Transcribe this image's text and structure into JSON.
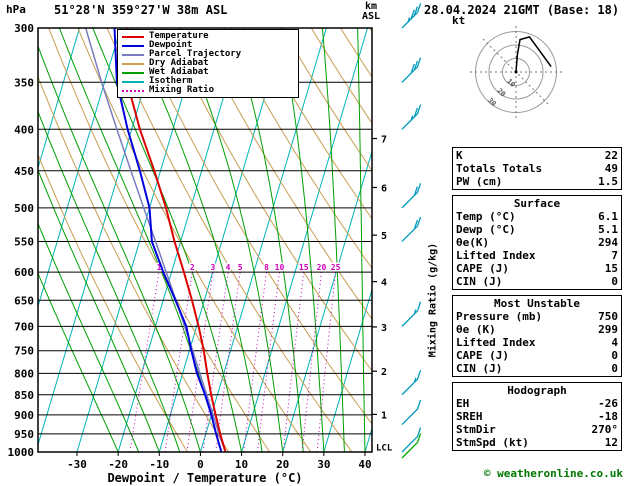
{
  "header": {
    "station": "51°28'N 359°27'W 38m ASL",
    "datetime": "28.04.2024 21GMT (Base: 18)"
  },
  "axes": {
    "pressure_unit": "hPa",
    "pressure_ticks": [
      300,
      350,
      400,
      450,
      500,
      550,
      600,
      650,
      700,
      750,
      800,
      850,
      900,
      950,
      1000
    ],
    "x_label": "Dewpoint / Temperature (°C)",
    "x_ticks": [
      -30,
      -20,
      -10,
      0,
      10,
      20,
      30,
      40
    ],
    "km_unit": "km",
    "km_sub": "ASL",
    "right_axis_label": "Mixing Ratio (g/kg)",
    "lcl_label": "LCL"
  },
  "legend": {
    "items": [
      {
        "label": "Temperature",
        "color": "#dd0000",
        "style": "solid"
      },
      {
        "label": "Dewpoint",
        "color": "#0000dd",
        "style": "solid"
      },
      {
        "label": "Parcel Trajectory",
        "color": "#7b7bc0",
        "style": "solid"
      },
      {
        "label": "Dry Adiabat",
        "color": "#c89e50",
        "style": "solid"
      },
      {
        "label": "Wet Adiabat",
        "color": "#00a000",
        "style": "solid"
      },
      {
        "label": "Isotherm",
        "color": "#00b4b4",
        "style": "solid"
      },
      {
        "label": "Mixing Ratio",
        "color": "#cc00bb",
        "style": "dotted"
      }
    ]
  },
  "colors": {
    "isotherm": "#00b4b4",
    "dry_adiabat": "#c89e50",
    "wet_adiabat": "#00a000",
    "mixing_ratio": "#cc00bb",
    "barb": "#0099bb",
    "grid": "#000000"
  },
  "chart_data": {
    "type": "skewt-log-p",
    "pressure_range_hpa": [
      300,
      1000
    ],
    "temp_axis_range_c": [
      -40,
      40
    ],
    "isotherm_step_c": 10,
    "series": {
      "temperature": {
        "color": "#dd0000",
        "points": [
          [
            1000,
            6.1
          ],
          [
            950,
            3.5
          ],
          [
            900,
            1.0
          ],
          [
            850,
            -1.5
          ],
          [
            800,
            -4.0
          ],
          [
            750,
            -6.5
          ],
          [
            700,
            -9.5
          ],
          [
            650,
            -13.0
          ],
          [
            600,
            -17.0
          ],
          [
            550,
            -21.5
          ],
          [
            500,
            -26.0
          ],
          [
            450,
            -31.5
          ],
          [
            400,
            -38.0
          ],
          [
            350,
            -44.5
          ],
          [
            300,
            -48.5
          ]
        ]
      },
      "dewpoint": {
        "color": "#0000dd",
        "points": [
          [
            1000,
            5.1
          ],
          [
            950,
            2.5
          ],
          [
            900,
            0.0
          ],
          [
            850,
            -3.0
          ],
          [
            800,
            -6.5
          ],
          [
            750,
            -9.5
          ],
          [
            700,
            -12.5
          ],
          [
            650,
            -17.0
          ],
          [
            600,
            -22.0
          ],
          [
            550,
            -27.0
          ],
          [
            500,
            -30.0
          ],
          [
            450,
            -35.0
          ],
          [
            400,
            -41.0
          ],
          [
            350,
            -47.0
          ],
          [
            300,
            -51.5
          ]
        ]
      },
      "parcel": {
        "color": "#7b7bc0",
        "points": [
          [
            1000,
            6.1
          ],
          [
            950,
            3.2
          ],
          [
            900,
            0.4
          ],
          [
            850,
            -2.6
          ],
          [
            800,
            -5.8
          ],
          [
            750,
            -9.2
          ],
          [
            700,
            -12.9
          ],
          [
            650,
            -16.9
          ],
          [
            600,
            -21.3
          ],
          [
            550,
            -26.1
          ],
          [
            500,
            -31.4
          ],
          [
            450,
            -37.2
          ],
          [
            400,
            -43.6
          ],
          [
            350,
            -50.7
          ],
          [
            300,
            -58.5
          ]
        ]
      }
    },
    "dry_adiabat_thetas_k": [
      270,
      280,
      290,
      300,
      310,
      320,
      330,
      340,
      350,
      360,
      370,
      380,
      390,
      400,
      410,
      420
    ],
    "wet_adiabat_surface_temps_c": [
      -20,
      -15,
      -10,
      -5,
      0,
      5,
      10,
      15,
      20,
      25,
      30,
      35,
      40
    ],
    "mixing_ratio_lines_gkg": [
      1,
      2,
      3,
      4,
      5,
      8,
      10,
      15,
      20,
      25
    ],
    "km_ticks": [
      1,
      2,
      3,
      4,
      5,
      6,
      7
    ],
    "lcl_pressure_hpa": 985,
    "wind_barbs": [
      {
        "p": 300,
        "spd_kt": 35
      },
      {
        "p": 350,
        "spd_kt": 30
      },
      {
        "p": 400,
        "spd_kt": 25
      },
      {
        "p": 500,
        "spd_kt": 20
      },
      {
        "p": 550,
        "spd_kt": 20
      },
      {
        "p": 700,
        "spd_kt": 15
      },
      {
        "p": 850,
        "spd_kt": 15
      },
      {
        "p": 925,
        "spd_kt": 10
      },
      {
        "p": 1000,
        "spd_kt": 10
      }
    ],
    "surface_barb": {
      "spd_kt": 10,
      "color": "#00aa00"
    }
  },
  "hodograph": {
    "unit": "kt",
    "rings_kt": [
      10,
      20,
      30
    ],
    "trace_uv_kt": [
      [
        0,
        0
      ],
      [
        1,
        13
      ],
      [
        3,
        24
      ],
      [
        10,
        26
      ],
      [
        26,
        4
      ]
    ]
  },
  "panel": {
    "sections": [
      {
        "rows": [
          [
            "K",
            "22"
          ],
          [
            "Totals Totals",
            "49"
          ],
          [
            "PW (cm)",
            "1.5"
          ]
        ]
      },
      {
        "title": "Surface",
        "rows": [
          [
            "Temp (°C)",
            "6.1"
          ],
          [
            "Dewp (°C)",
            "5.1"
          ],
          [
            "θe(K)",
            "294"
          ],
          [
            "Lifted Index",
            "7"
          ],
          [
            "CAPE (J)",
            "15"
          ],
          [
            "CIN (J)",
            "0"
          ]
        ]
      },
      {
        "title": "Most Unstable",
        "rows": [
          [
            "Pressure (mb)",
            "750"
          ],
          [
            "θe (K)",
            "299"
          ],
          [
            "Lifted Index",
            "4"
          ],
          [
            "CAPE (J)",
            "0"
          ],
          [
            "CIN (J)",
            "0"
          ]
        ]
      },
      {
        "title": "Hodograph",
        "rows": [
          [
            "EH",
            "-26"
          ],
          [
            "SREH",
            "-18"
          ],
          [
            "StmDir",
            "270°"
          ],
          [
            "StmSpd (kt)",
            "12"
          ]
        ]
      }
    ]
  },
  "footer": {
    "copyright": "© weatheronline.co.uk"
  }
}
